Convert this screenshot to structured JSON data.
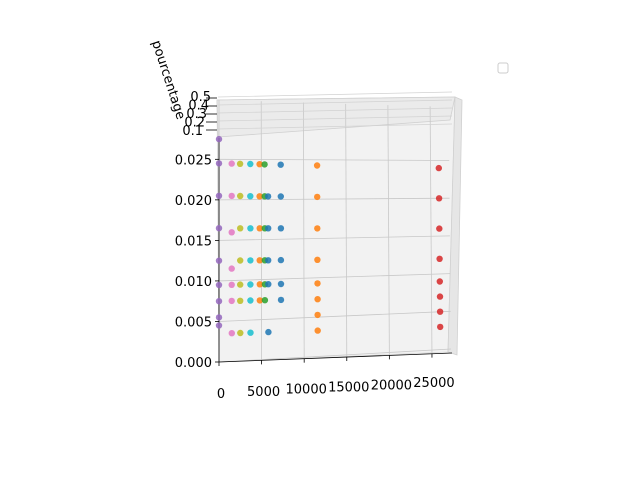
{
  "chart_data": {
    "type": "scatter",
    "projection": "3d",
    "title": "",
    "xlabel": "",
    "ylabel": "",
    "zlabel": "pourcentage",
    "xticks": [
      "0",
      "5000",
      "10000",
      "15000",
      "20000",
      "25000"
    ],
    "zticks": [
      "0.000",
      "0.005",
      "0.010",
      "0.015",
      "0.020",
      "0.025"
    ],
    "depth_ticks": [
      "0.1",
      "0.2",
      "0.3",
      "0.4",
      "0.5"
    ],
    "xlim": [
      0,
      27000
    ],
    "zlim": [
      0,
      0.028
    ],
    "grid": true,
    "legend": {
      "placement": "top-right",
      "entries": []
    },
    "colors": [
      "#9467bd",
      "#e377c2",
      "#bcbd22",
      "#17becf",
      "#ff7f0e",
      "#2ca02c",
      "#1f77b4",
      "#d62728"
    ],
    "series": [
      {
        "color": "#9467bd",
        "x": [
          0,
          0,
          0,
          0,
          0,
          0,
          0,
          0,
          0
        ],
        "y": [
          0.0275,
          0.0245,
          0.0205,
          0.0165,
          0.0125,
          0.0095,
          0.0075,
          0.0055,
          0.0045
        ]
      },
      {
        "color": "#e377c2",
        "x": [
          1500,
          1500,
          1500,
          1500,
          1500,
          1500,
          1500
        ],
        "y": [
          0.0245,
          0.0205,
          0.016,
          0.0115,
          0.0095,
          0.0075,
          0.0035
        ]
      },
      {
        "color": "#bcbd22",
        "x": [
          2500,
          2500,
          2500,
          2500,
          2500,
          2500,
          2500
        ],
        "y": [
          0.0245,
          0.0205,
          0.0165,
          0.0125,
          0.0095,
          0.0075,
          0.0035
        ]
      },
      {
        "color": "#17becf",
        "x": [
          3700,
          3700,
          3700,
          3700,
          3700,
          3700,
          3700
        ],
        "y": [
          0.0245,
          0.0205,
          0.0165,
          0.0125,
          0.0095,
          0.0075,
          0.0035
        ]
      },
      {
        "color": "#ff7f0e",
        "x": [
          4800,
          4800,
          4800,
          4800,
          4800,
          4800,
          11600,
          11600,
          11600,
          11600,
          11600,
          11600,
          11600,
          11600
        ],
        "y": [
          0.0245,
          0.0205,
          0.0165,
          0.0125,
          0.0095,
          0.0075,
          0.0245,
          0.0205,
          0.0165,
          0.0125,
          0.0095,
          0.0075,
          0.0055,
          0.0035
        ]
      },
      {
        "color": "#2ca02c",
        "x": [
          5400,
          5400,
          5400,
          5400,
          5400,
          5400
        ],
        "y": [
          0.0245,
          0.0205,
          0.0165,
          0.0125,
          0.0095,
          0.0075
        ]
      },
      {
        "color": "#1f77b4",
        "x": [
          5800,
          5800,
          5800,
          5800,
          5800,
          7300,
          7300,
          7300,
          7300,
          7300,
          7300
        ],
        "y": [
          0.0205,
          0.0165,
          0.0125,
          0.0095,
          0.0035,
          0.0245,
          0.0205,
          0.0165,
          0.0125,
          0.0095,
          0.0075
        ]
      },
      {
        "color": "#d62728",
        "x": [
          26000,
          26000,
          26000,
          26000,
          26000,
          26000,
          26000,
          26000
        ],
        "y": [
          0.0245,
          0.0205,
          0.0165,
          0.0125,
          0.0095,
          0.0075,
          0.0055,
          0.0035
        ]
      }
    ]
  }
}
